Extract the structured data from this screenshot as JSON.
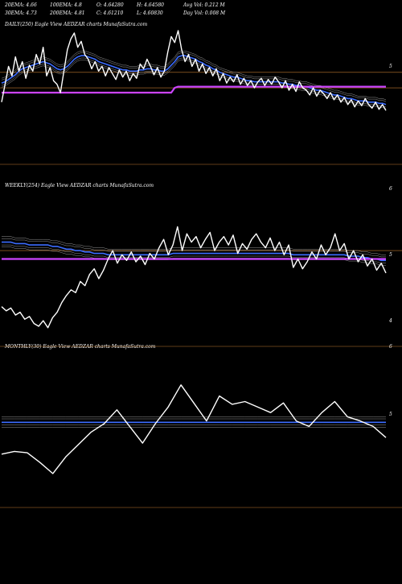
{
  "header": {
    "rows": [
      [
        "20EMA: 4.66",
        "100EMA: 4.8",
        "O: 4.64280",
        "H: 4.64580",
        "Avg Vol: 0.212  M"
      ],
      [
        "30EMA: 4.73",
        "200EMA: 4.81",
        "C: 4.61210",
        "L: 4.60830",
        "Day Vol: 0.008  M"
      ]
    ]
  },
  "colors": {
    "background": "#000000",
    "price": "#ffffff",
    "ema_fast": "#3b6cff",
    "ema_slow": "#cc44ff",
    "envelope": "#bfbfbf",
    "level_line": "#c07a30",
    "text": "#ffffff"
  },
  "chart_data": [
    {
      "type": "line",
      "title": "DAILY(250) Eagle   View  AEDZAR charts MunafaSutra.com",
      "right_ticks": [
        "5"
      ],
      "series": [
        {
          "values": [
            0.4,
            0.55,
            0.7,
            0.62,
            0.78,
            0.66,
            0.74,
            0.6,
            0.71,
            0.66,
            0.8,
            0.72,
            0.86,
            0.62,
            0.69,
            0.58,
            0.55,
            0.48,
            0.66,
            0.84,
            0.93,
            0.98,
            0.86,
            0.91,
            0.8,
            0.76,
            0.68,
            0.74,
            0.66,
            0.7,
            0.62,
            0.69,
            0.64,
            0.59,
            0.67,
            0.61,
            0.66,
            0.58,
            0.64,
            0.6,
            0.72,
            0.68,
            0.76,
            0.7,
            0.63,
            0.69,
            0.61,
            0.66,
            0.82,
            0.95,
            0.9,
            1.0,
            0.84,
            0.74,
            0.8,
            0.7,
            0.76,
            0.66,
            0.72,
            0.64,
            0.69,
            0.62,
            0.68,
            0.58,
            0.64,
            0.56,
            0.61,
            0.57,
            0.63,
            0.55,
            0.6,
            0.54,
            0.58,
            0.52,
            0.57,
            0.6,
            0.54,
            0.59,
            0.55,
            0.61,
            0.57,
            0.52,
            0.58,
            0.5,
            0.55,
            0.49,
            0.57,
            0.52,
            0.5,
            0.46,
            0.52,
            0.45,
            0.5,
            0.47,
            0.43,
            0.48,
            0.42,
            0.46,
            0.4,
            0.44,
            0.38,
            0.42,
            0.36,
            0.41,
            0.37,
            0.43,
            0.38,
            0.35,
            0.4,
            0.34,
            0.38,
            0.33
          ]
        },
        {
          "values": [
            0.56,
            0.57,
            0.59,
            0.61,
            0.63,
            0.66,
            0.68,
            0.69,
            0.7,
            0.71,
            0.72,
            0.73,
            0.74,
            0.73,
            0.72,
            0.7,
            0.68,
            0.67,
            0.68,
            0.7,
            0.73,
            0.76,
            0.78,
            0.79,
            0.79,
            0.78,
            0.77,
            0.76,
            0.74,
            0.73,
            0.72,
            0.71,
            0.7,
            0.69,
            0.68,
            0.67,
            0.67,
            0.66,
            0.66,
            0.66,
            0.67,
            0.67,
            0.68,
            0.68,
            0.67,
            0.67,
            0.66,
            0.66,
            0.68,
            0.71,
            0.74,
            0.78,
            0.79,
            0.79,
            0.78,
            0.77,
            0.76,
            0.74,
            0.73,
            0.71,
            0.7,
            0.68,
            0.67,
            0.65,
            0.64,
            0.63,
            0.62,
            0.61,
            0.61,
            0.6,
            0.59,
            0.58,
            0.58,
            0.57,
            0.57,
            0.57,
            0.57,
            0.57,
            0.57,
            0.57,
            0.57,
            0.56,
            0.56,
            0.55,
            0.55,
            0.54,
            0.54,
            0.53,
            0.53,
            0.52,
            0.51,
            0.5,
            0.5,
            0.49,
            0.48,
            0.47,
            0.46,
            0.46,
            0.45,
            0.44,
            0.43,
            0.43,
            0.42,
            0.41,
            0.41,
            0.41,
            0.4,
            0.4,
            0.4,
            0.39,
            0.39,
            0.38
          ]
        },
        {
          "values": [
            0.48,
            0.48,
            0.48,
            0.48,
            0.48,
            0.48,
            0.48,
            0.48,
            0.48,
            0.48,
            0.48,
            0.48,
            0.48,
            0.48,
            0.48,
            0.48,
            0.48,
            0.48,
            0.48,
            0.48,
            0.48,
            0.48,
            0.48,
            0.48,
            0.48,
            0.48,
            0.48,
            0.48,
            0.48,
            0.48,
            0.48,
            0.48,
            0.48,
            0.48,
            0.48,
            0.48,
            0.48,
            0.48,
            0.48,
            0.48,
            0.48,
            0.48,
            0.48,
            0.48,
            0.48,
            0.48,
            0.48,
            0.48,
            0.48,
            0.48,
            0.52,
            0.53,
            0.53,
            0.53,
            0.53,
            0.53,
            0.53,
            0.53,
            0.53,
            0.53,
            0.53,
            0.53,
            0.53,
            0.53,
            0.53,
            0.53,
            0.53,
            0.53,
            0.53,
            0.53,
            0.53,
            0.53,
            0.53,
            0.53,
            0.53,
            0.53,
            0.53,
            0.53,
            0.53,
            0.53,
            0.53,
            0.53,
            0.53,
            0.53,
            0.53,
            0.53,
            0.53,
            0.53,
            0.53,
            0.53,
            0.53,
            0.53,
            0.53,
            0.53,
            0.53,
            0.53,
            0.53,
            0.53,
            0.53,
            0.53,
            0.53,
            0.53,
            0.53,
            0.53,
            0.53,
            0.53,
            0.53,
            0.53,
            0.53,
            0.53,
            0.53,
            0.53
          ]
        }
      ],
      "levels": [
        0.65,
        0.52
      ]
    },
    {
      "type": "line",
      "title": "WEEKLY(254) Eagle   View  AEDZAR charts MunafaSutra.com",
      "right_ticks": [
        "6",
        "5",
        "4"
      ],
      "series": [
        {
          "values": [
            0.18,
            0.15,
            0.17,
            0.12,
            0.14,
            0.09,
            0.11,
            0.06,
            0.04,
            0.08,
            0.03,
            0.1,
            0.14,
            0.21,
            0.26,
            0.3,
            0.28,
            0.36,
            0.33,
            0.41,
            0.45,
            0.38,
            0.44,
            0.52,
            0.58,
            0.49,
            0.55,
            0.51,
            0.57,
            0.5,
            0.54,
            0.48,
            0.56,
            0.52,
            0.6,
            0.66,
            0.55,
            0.62,
            0.75,
            0.58,
            0.7,
            0.64,
            0.68,
            0.6,
            0.66,
            0.71,
            0.58,
            0.64,
            0.68,
            0.62,
            0.69,
            0.56,
            0.63,
            0.59,
            0.66,
            0.7,
            0.64,
            0.6,
            0.67,
            0.58,
            0.64,
            0.55,
            0.62,
            0.46,
            0.52,
            0.45,
            0.5,
            0.57,
            0.52,
            0.62,
            0.55,
            0.6,
            0.7,
            0.58,
            0.63,
            0.52,
            0.58,
            0.5,
            0.55,
            0.47,
            0.52,
            0.44,
            0.49,
            0.42
          ]
        },
        {
          "values": [
            0.64,
            0.64,
            0.64,
            0.63,
            0.63,
            0.63,
            0.62,
            0.62,
            0.62,
            0.62,
            0.62,
            0.61,
            0.61,
            0.6,
            0.59,
            0.59,
            0.58,
            0.58,
            0.57,
            0.57,
            0.56,
            0.56,
            0.56,
            0.55,
            0.55,
            0.55,
            0.55,
            0.55,
            0.55,
            0.55,
            0.55,
            0.55,
            0.55,
            0.55,
            0.55,
            0.55,
            0.55,
            0.56,
            0.56,
            0.56,
            0.56,
            0.56,
            0.56,
            0.56,
            0.56,
            0.56,
            0.56,
            0.56,
            0.56,
            0.56,
            0.56,
            0.56,
            0.56,
            0.56,
            0.56,
            0.56,
            0.56,
            0.56,
            0.56,
            0.56,
            0.56,
            0.56,
            0.56,
            0.55,
            0.55,
            0.55,
            0.55,
            0.55,
            0.55,
            0.55,
            0.55,
            0.55,
            0.55,
            0.55,
            0.55,
            0.54,
            0.54,
            0.54,
            0.53,
            0.53,
            0.52,
            0.52,
            0.51,
            0.51
          ]
        },
        {
          "values": [
            0.52,
            0.52,
            0.52,
            0.52,
            0.52,
            0.52,
            0.52,
            0.52,
            0.52,
            0.52,
            0.52,
            0.52,
            0.52,
            0.52,
            0.52,
            0.52,
            0.52,
            0.52,
            0.52,
            0.52,
            0.52,
            0.52,
            0.52,
            0.52,
            0.52,
            0.52,
            0.52,
            0.52,
            0.52,
            0.52,
            0.52,
            0.52,
            0.52,
            0.52,
            0.52,
            0.52,
            0.52,
            0.52,
            0.52,
            0.52,
            0.52,
            0.52,
            0.52,
            0.52,
            0.52,
            0.52,
            0.52,
            0.52,
            0.52,
            0.52,
            0.52,
            0.52,
            0.52,
            0.52,
            0.52,
            0.52,
            0.52,
            0.52,
            0.52,
            0.52,
            0.52,
            0.52,
            0.52,
            0.52,
            0.52,
            0.52,
            0.52,
            0.52,
            0.52,
            0.52,
            0.52,
            0.52,
            0.52,
            0.52,
            0.52,
            0.52,
            0.52,
            0.52,
            0.52,
            0.52,
            0.52,
            0.52,
            0.52,
            0.52
          ]
        }
      ],
      "levels": [
        0.58
      ]
    },
    {
      "type": "line",
      "title": "MONTHLY(30) Eagle   View  AEDZAR charts MunafaSutra.com",
      "right_ticks": [
        "6",
        "5"
      ],
      "series": [
        {
          "values": [
            0.28,
            0.3,
            0.29,
            0.22,
            0.14,
            0.26,
            0.35,
            0.44,
            0.5,
            0.6,
            0.48,
            0.36,
            0.5,
            0.62,
            0.78,
            0.65,
            0.52,
            0.7,
            0.64,
            0.66,
            0.62,
            0.58,
            0.65,
            0.52,
            0.48,
            0.58,
            0.66,
            0.55,
            0.52,
            0.48,
            0.4
          ]
        },
        {
          "values": [
            0.51,
            0.51,
            0.51,
            0.51,
            0.51,
            0.51,
            0.51,
            0.51,
            0.51,
            0.51,
            0.51,
            0.51,
            0.51,
            0.51,
            0.51,
            0.51,
            0.51,
            0.51,
            0.51,
            0.51,
            0.51,
            0.51,
            0.51,
            0.51,
            0.51,
            0.51,
            0.51,
            0.51,
            0.51,
            0.51,
            0.51
          ]
        }
      ],
      "levels": []
    }
  ]
}
